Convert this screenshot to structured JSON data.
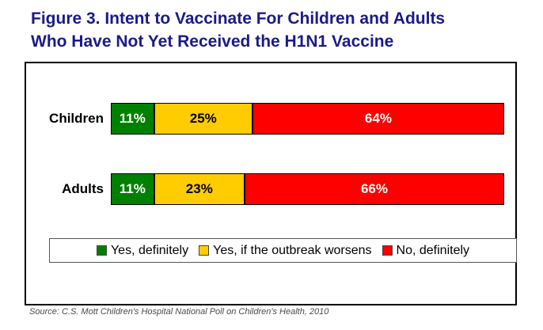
{
  "title": {
    "line1": "Figure 3. Intent to Vaccinate For Children and Adults",
    "line2": "Who Have Not Yet Received the H1N1 Vaccine",
    "color": "#1A1A8C"
  },
  "source": "Source: C.S. Mott Children's Hospital National Poll on Children's Health, 2010",
  "colors": {
    "title_navy": "#1A1A8C",
    "green": "#008000",
    "yellow": "#FFCC00",
    "red": "#FE0000",
    "box_border": "#000000"
  },
  "chart_data": {
    "type": "bar",
    "orientation": "horizontal-stacked",
    "title": "Figure 3. Intent to Vaccinate For Children and Adults Who Have Not Yet Received the H1N1 Vaccine",
    "categories": [
      "Children",
      "Adults"
    ],
    "series": [
      {
        "name": "Yes, definitely",
        "color": "#008000",
        "label_color": "#FFFFFF",
        "values": [
          11,
          11
        ]
      },
      {
        "name": "Yes, if the outbreak worsens",
        "color": "#FFCC00",
        "label_color": "#000000",
        "values": [
          25,
          23
        ]
      },
      {
        "name": "No, definitely",
        "color": "#FE0000",
        "label_color": "#FFFFFF",
        "values": [
          64,
          66
        ]
      }
    ],
    "value_format": "percent",
    "data_labels": [
      [
        "11%",
        "25%",
        "64%"
      ],
      [
        "11%",
        "23%",
        "66%"
      ]
    ],
    "xlim": [
      0,
      100
    ],
    "grid": false,
    "legend_position": "bottom-inside",
    "source_note": "Source: C.S. Mott Children's Hospital National Poll on Children's Health, 2010"
  }
}
